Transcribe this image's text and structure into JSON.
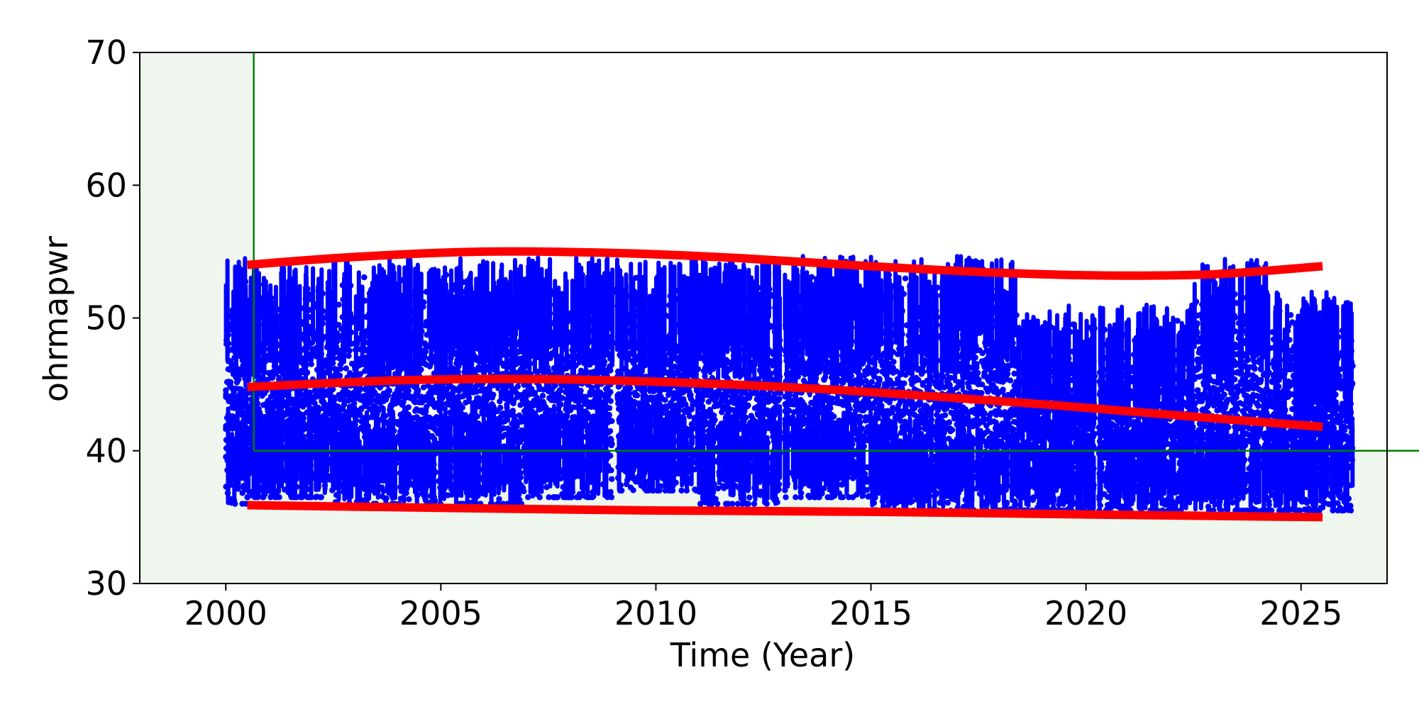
{
  "chart_data": {
    "type": "scatter",
    "title": "",
    "xlabel": "Time (Year)",
    "ylabel": "ohrmapwr",
    "xlim": [
      1998.0,
      2027.0
    ],
    "ylim": [
      30,
      70
    ],
    "xticks": [
      2000,
      2005,
      2010,
      2015,
      2020,
      2025
    ],
    "yticks": [
      30,
      40,
      50,
      60,
      70
    ],
    "grid": false,
    "legend": "none",
    "colors": {
      "points": "#0000ff",
      "trend": "#ff0000",
      "limit_line": "#008000",
      "limit_region": "#eef6ee"
    },
    "limit_region": {
      "x_threshold": 2000.65,
      "y_threshold": 40
    },
    "scatter_density": [
      {
        "x0": 2000.0,
        "x1": 2000.5,
        "ymin": 36.0,
        "ymax": 54.5
      },
      {
        "x0": 2000.5,
        "x1": 2002.5,
        "ymin": 36.5,
        "ymax": 54.0
      },
      {
        "x0": 2002.5,
        "x1": 2005.0,
        "ymin": 36.0,
        "ymax": 54.5
      },
      {
        "x0": 2005.0,
        "x1": 2007.0,
        "ymin": 36.0,
        "ymax": 54.5
      },
      {
        "x0": 2007.0,
        "x1": 2009.0,
        "ymin": 36.5,
        "ymax": 54.7
      },
      {
        "x0": 2009.1,
        "x1": 2011.0,
        "ymin": 37.0,
        "ymax": 54.5
      },
      {
        "x0": 2011.0,
        "x1": 2012.9,
        "ymin": 36.0,
        "ymax": 54.5
      },
      {
        "x0": 2013.0,
        "x1": 2015.0,
        "ymin": 36.5,
        "ymax": 54.7
      },
      {
        "x0": 2015.0,
        "x1": 2018.4,
        "ymin": 35.5,
        "ymax": 54.7
      },
      {
        "x0": 2018.4,
        "x1": 2020.2,
        "ymin": 35.5,
        "ymax": 51.0
      },
      {
        "x0": 2020.3,
        "x1": 2022.5,
        "ymin": 35.5,
        "ymax": 51.0
      },
      {
        "x0": 2022.5,
        "x1": 2024.2,
        "ymin": 35.5,
        "ymax": 54.5
      },
      {
        "x0": 2024.2,
        "x1": 2026.2,
        "ymin": 35.5,
        "ymax": 52.0
      }
    ],
    "series": [
      {
        "values": [
          {
            "x": 2000.5,
            "y": 54.0
          },
          {
            "x": 2003.0,
            "y": 54.6
          },
          {
            "x": 2006.0,
            "y": 55.0
          },
          {
            "x": 2009.0,
            "y": 54.9
          },
          {
            "x": 2012.0,
            "y": 54.5
          },
          {
            "x": 2015.0,
            "y": 53.9
          },
          {
            "x": 2018.0,
            "y": 53.4
          },
          {
            "x": 2020.5,
            "y": 53.2
          },
          {
            "x": 2023.0,
            "y": 53.3
          },
          {
            "x": 2025.5,
            "y": 53.9
          }
        ]
      },
      {
        "values": [
          {
            "x": 2000.5,
            "y": 44.8
          },
          {
            "x": 2004.0,
            "y": 45.3
          },
          {
            "x": 2007.0,
            "y": 45.4
          },
          {
            "x": 2010.0,
            "y": 45.2
          },
          {
            "x": 2013.0,
            "y": 44.8
          },
          {
            "x": 2016.0,
            "y": 44.2
          },
          {
            "x": 2019.0,
            "y": 43.5
          },
          {
            "x": 2022.0,
            "y": 42.7
          },
          {
            "x": 2025.5,
            "y": 41.8
          }
        ]
      },
      {
        "values": [
          {
            "x": 2000.5,
            "y": 35.9
          },
          {
            "x": 2005.0,
            "y": 35.7
          },
          {
            "x": 2010.0,
            "y": 35.5
          },
          {
            "x": 2015.0,
            "y": 35.4
          },
          {
            "x": 2020.0,
            "y": 35.2
          },
          {
            "x": 2025.5,
            "y": 35.0
          }
        ]
      }
    ]
  }
}
